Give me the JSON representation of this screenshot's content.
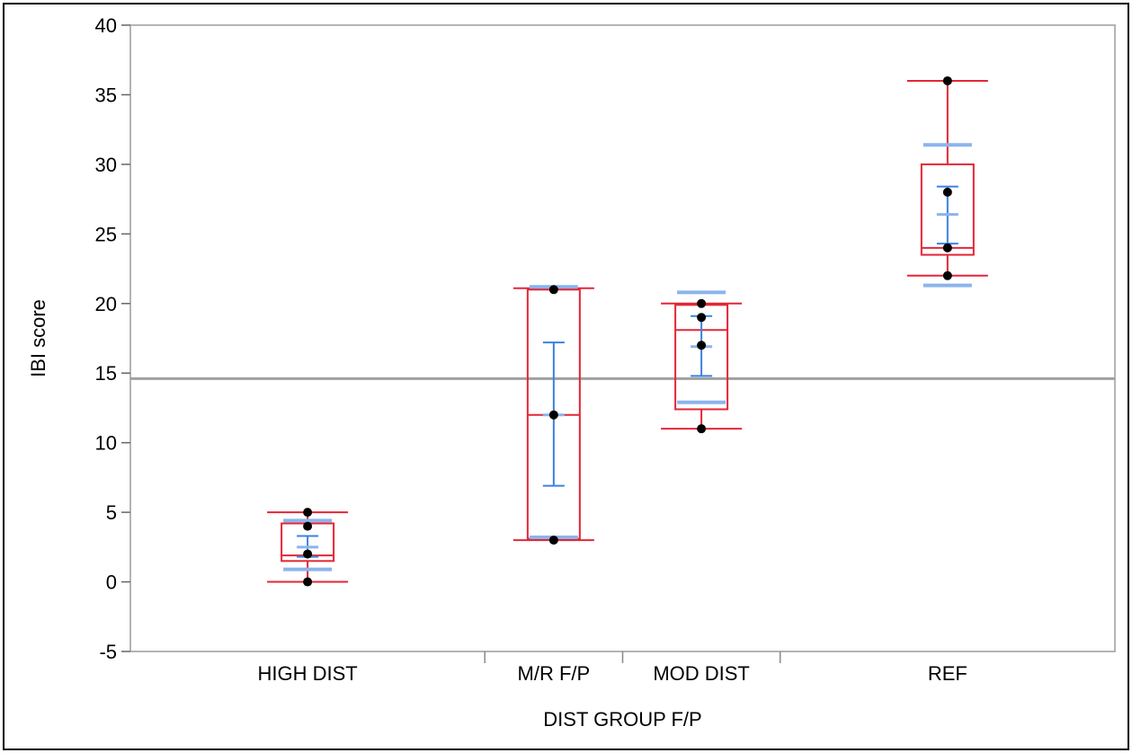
{
  "chart_data": {
    "type": "box",
    "xlabel": "DIST GROUP F/P",
    "ylabel": "IBI score",
    "ylim": [
      -5,
      40
    ],
    "yticks": [
      -5,
      0,
      5,
      10,
      15,
      20,
      25,
      30,
      35,
      40
    ],
    "categories": [
      "HIGH DIST",
      "M/R F/P",
      "MOD DIST",
      "REF"
    ],
    "category_spans": [
      [
        0,
        0.36
      ],
      [
        0.36,
        0.5
      ],
      [
        0.5,
        0.66
      ],
      [
        0.66,
        1
      ]
    ],
    "grand_mean": 14.6,
    "groups": [
      {
        "name": "HIGH DIST",
        "points": [
          0,
          2,
          4,
          5
        ],
        "box": {
          "min": 0,
          "q1": 1.5,
          "median": 1.9,
          "q3": 4.2,
          "max": 5
        },
        "mean": 2.5,
        "mean_ci": [
          1.8,
          3.3
        ],
        "std_marks": [
          0.9,
          4.4
        ]
      },
      {
        "name": "M/R F/P",
        "points": [
          3,
          12,
          21
        ],
        "box": {
          "min": 3,
          "q1": 3.1,
          "median": 12,
          "q3": 21,
          "max": 21.1
        },
        "mean": 12,
        "mean_ci": [
          6.9,
          17.2
        ],
        "std_marks": [
          3.2,
          21.2
        ]
      },
      {
        "name": "MOD DIST",
        "points": [
          11,
          17,
          19,
          20
        ],
        "box": {
          "min": 11,
          "q1": 12.4,
          "median": 18.1,
          "q3": 19.9,
          "max": 20
        },
        "mean": 16.9,
        "mean_ci": [
          14.8,
          19.1
        ],
        "std_marks": [
          12.9,
          20.8
        ]
      },
      {
        "name": "REF",
        "points": [
          22,
          24,
          28,
          36
        ],
        "box": {
          "min": 22,
          "q1": 23.5,
          "median": 24,
          "q3": 30,
          "max": 36
        },
        "mean": 26.4,
        "mean_ci": [
          24.3,
          28.4
        ],
        "std_marks": [
          21.3,
          31.4
        ]
      }
    ],
    "colors": {
      "box": "#e32636",
      "means": "#3b82e0",
      "std": "#8bb4ec",
      "points": "#000000",
      "grand_mean_line": "#a0a0a0",
      "frame": "#b4b4b4"
    }
  }
}
